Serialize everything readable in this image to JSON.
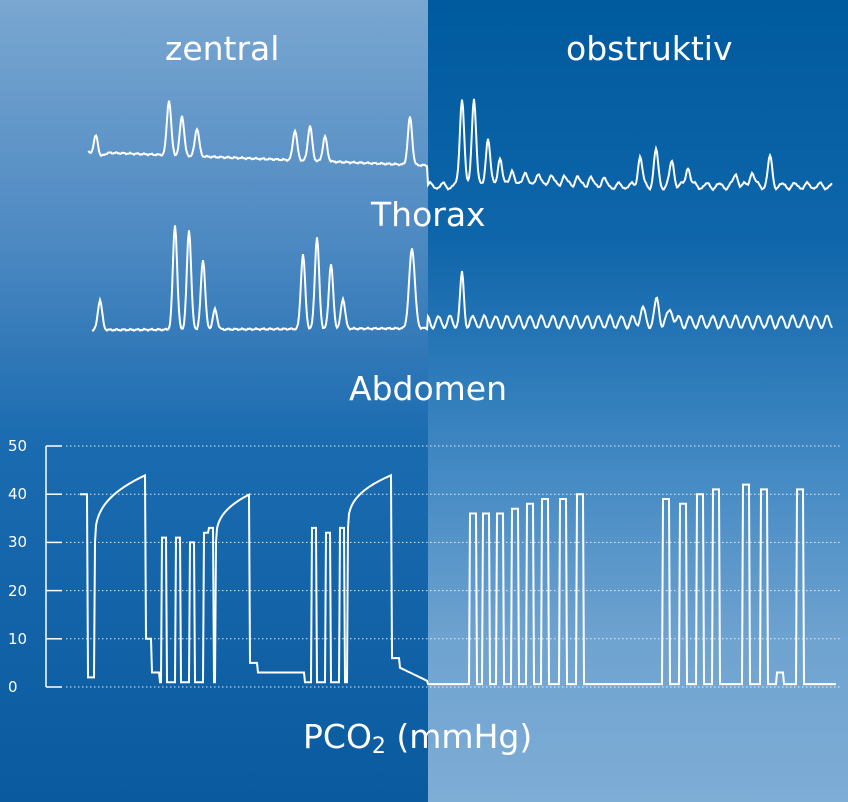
{
  "columns": {
    "left_label": "zentral",
    "right_label": "obstruktiv"
  },
  "traces": {
    "thorax_label": "Thorax",
    "abdomen_label": "Abdomen"
  },
  "pco2": {
    "label_main": "PCO",
    "label_sub": "2",
    "label_unit": " (mmHg)"
  },
  "chart_data": {
    "type": "line",
    "ylim": [
      0,
      50
    ],
    "yticks": [
      "50",
      "40",
      "30",
      "20",
      "10",
      "0"
    ],
    "grid": "horizontal dotted"
  },
  "colors": {
    "line": "#ffffff",
    "left_panel_top": "#7aa7d1",
    "left_panel_bottom": "#0a5a9f",
    "right_panel_top": "#005a9e",
    "right_panel_bottom": "#7eadd6"
  }
}
